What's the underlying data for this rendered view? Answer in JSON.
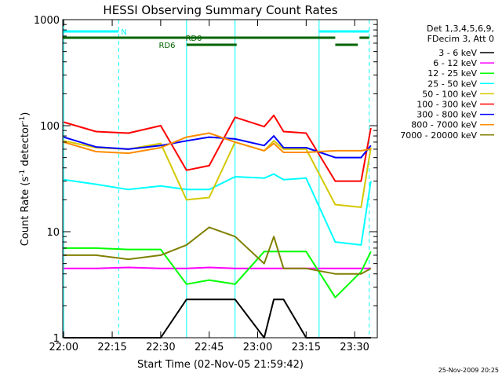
{
  "chart_data": {
    "type": "line",
    "title": "HESSI Observing Summary Count Rates",
    "xlabel": "Start Time (02-Nov-05 21:59:42)",
    "ylabel_main": "Count Rate (s",
    "ylabel_sup1": "-1",
    "ylabel_mid": " detector",
    "ylabel_sup2": "-1",
    "ylabel_end": ")",
    "x_ticks": [
      "22:00",
      "22:15",
      "22:30",
      "22:45",
      "23:00",
      "23:15",
      "23:30"
    ],
    "y_scale": "log",
    "ylim": [
      1,
      1000
    ],
    "y_ticks": [
      "1",
      "10",
      "100",
      "1000"
    ],
    "detector_info": [
      "Det 1,3,4,5,6,9,",
      "FDecim 3, Att 0"
    ],
    "flags": [
      {
        "label": "N",
        "color": "#00ffff",
        "segments": [
          [
            "21:59:42",
            "22:17:00"
          ],
          [
            "23:19:00",
            "23:34:30"
          ]
        ]
      },
      {
        "label": "RD0",
        "color": "#006400",
        "segments": [
          [
            "21:59:42",
            "23:24:00"
          ],
          [
            "23:31:30",
            "23:34:30"
          ]
        ]
      },
      {
        "label": "RD6",
        "color": "#006400",
        "segments": [
          [
            "22:38:00",
            "22:53:30"
          ],
          [
            "23:24:00",
            "23:31:00"
          ]
        ]
      }
    ],
    "vertical_markers": {
      "solid": [
        "22:00",
        "22:38",
        "22:53",
        "23:19"
      ],
      "dashed": [
        "22:17",
        "23:34:30"
      ]
    },
    "times": [
      "22:00",
      "22:10",
      "22:20",
      "22:30",
      "22:38",
      "22:45",
      "22:53",
      "23:02",
      "23:05",
      "23:08",
      "23:15",
      "23:24",
      "23:32",
      "23:35"
    ],
    "series": [
      {
        "name": "3 - 6 keV",
        "color": "#000000",
        "values": [
          1,
          1,
          1,
          1,
          2.3,
          2.3,
          2.3,
          1,
          2.3,
          2.3,
          1,
          1,
          1,
          1
        ]
      },
      {
        "name": "6 - 12 keV",
        "color": "#ff00ff",
        "values": [
          4.5,
          4.5,
          4.6,
          4.5,
          4.5,
          4.6,
          4.5,
          4.5,
          4.5,
          4.5,
          4.5,
          4.5,
          4.5,
          4.5
        ]
      },
      {
        "name": "12 - 25 keV",
        "color": "#00ff00",
        "values": [
          7,
          7,
          6.8,
          6.8,
          3.2,
          3.5,
          3.2,
          6.5,
          6.5,
          6.5,
          6.5,
          2.4,
          4.2,
          6.5
        ]
      },
      {
        "name": "25 - 50 keV",
        "color": "#00ffff",
        "values": [
          31,
          28,
          25,
          27,
          25,
          25,
          33,
          32,
          35,
          31,
          32,
          8,
          7.5,
          30
        ]
      },
      {
        "name": "50 - 100 keV",
        "color": "#d4c800",
        "values": [
          72,
          62,
          60,
          68,
          20,
          21,
          70,
          58,
          72,
          60,
          60,
          18,
          17,
          62
        ]
      },
      {
        "name": "100 - 300 keV",
        "color": "#ff0000",
        "values": [
          108,
          88,
          85,
          100,
          38,
          42,
          120,
          98,
          125,
          88,
          85,
          30,
          30,
          95
        ]
      },
      {
        "name": "300 - 800 keV",
        "color": "#0000ff",
        "values": [
          78,
          63,
          60,
          65,
          72,
          78,
          75,
          65,
          80,
          62,
          62,
          50,
          50,
          65
        ]
      },
      {
        "name": "800 - 7000 keV",
        "color": "#ff8c00",
        "values": [
          70,
          57,
          55,
          62,
          78,
          85,
          70,
          58,
          68,
          56,
          56,
          58,
          58,
          60
        ]
      },
      {
        "name": "7000 - 20000 keV",
        "color": "#808000",
        "values": [
          6,
          6,
          5.5,
          6,
          7.5,
          11,
          9,
          5,
          9,
          4.5,
          4.5,
          4,
          4,
          4.5
        ]
      }
    ]
  },
  "footer_date": "25-Nov-2009 20:25"
}
